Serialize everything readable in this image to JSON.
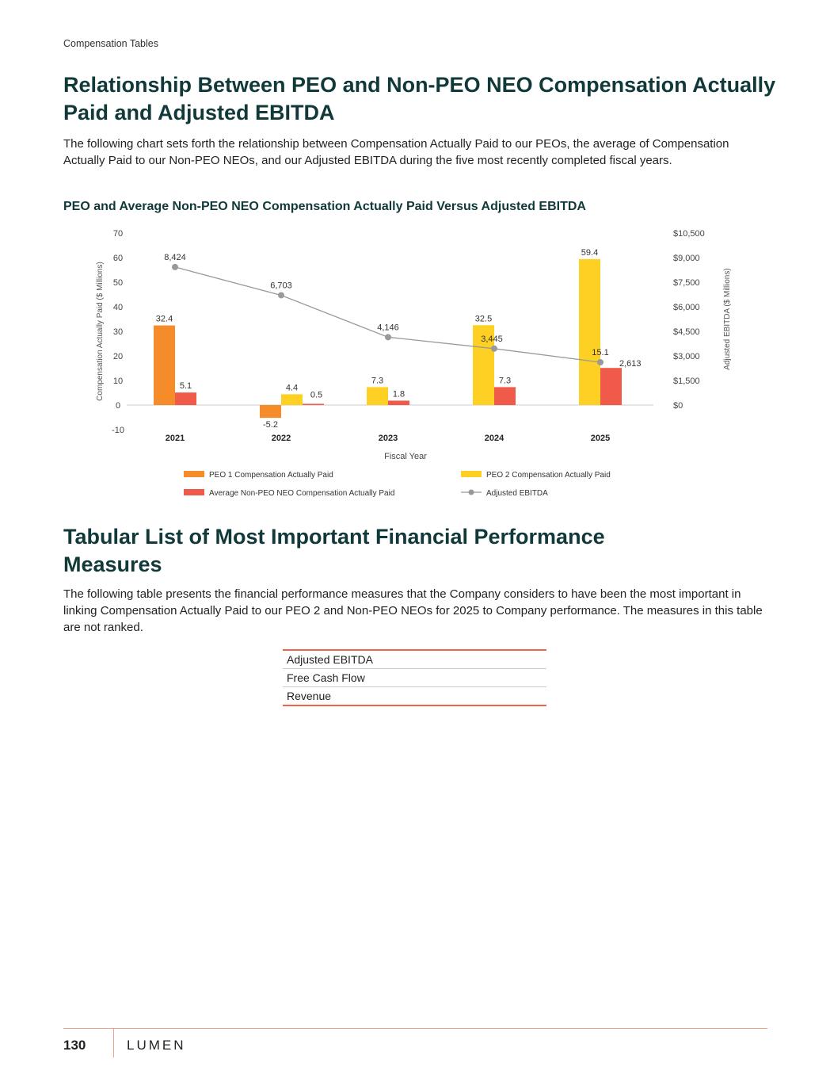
{
  "header": {
    "section": "Compensation Tables"
  },
  "section1": {
    "title": "Relationship Between PEO and Non-PEO NEO Compensation Actually Paid and Adjusted EBITDA",
    "body": "The following chart sets forth the relationship between Compensation Actually Paid to our PEOs, the average of Compensation Actually Paid to our Non-PEO NEOs, and our Adjusted EBITDA during the five most recently completed fiscal years.",
    "chart_title": "PEO and Average Non-PEO NEO Compensation Actually Paid Versus Adjusted EBITDA"
  },
  "chart_data": {
    "type": "bar",
    "title": "PEO and Average Non-PEO NEO Compensation Actually Paid Versus Adjusted EBITDA",
    "categories": [
      "2021",
      "2022",
      "2023",
      "2024",
      "2025"
    ],
    "xlabel": "Fiscal Year",
    "ylabel": "Compensation Actually Paid ($ Millions)",
    "y2label": "Adjusted EBITDA ($ Millions)",
    "ylim": [
      -10,
      70
    ],
    "yticks": [
      "-10",
      "0",
      "10",
      "20",
      "30",
      "40",
      "50",
      "60",
      "70"
    ],
    "y2lim": [
      0,
      10500
    ],
    "y2ticks": [
      "$0",
      "$1,500",
      "$3,000",
      "$4,500",
      "$6,000",
      "$7,500",
      "$9,000",
      "$10,500"
    ],
    "legend_position": "bottom",
    "series": [
      {
        "name": "PEO 1 Compensation Actually Paid",
        "type": "bar",
        "color": "#F68B2A",
        "values": [
          32.4,
          -5.2,
          null,
          null,
          null
        ],
        "labels": [
          "32.4",
          "-5.2",
          "",
          "",
          ""
        ]
      },
      {
        "name": "PEO 2 Compensation Actually Paid",
        "type": "bar",
        "color": "#FDD023",
        "values": [
          null,
          4.4,
          7.3,
          32.5,
          59.4
        ],
        "labels": [
          "",
          "4.4",
          "7.3",
          "32.5",
          "59.4"
        ]
      },
      {
        "name": "Average Non-PEO NEO Compensation Actually Paid",
        "type": "bar",
        "color": "#F05A4A",
        "values": [
          5.1,
          0.5,
          1.8,
          7.3,
          15.1
        ],
        "labels": [
          "5.1",
          "0.5",
          "1.8",
          "7.3",
          "15.1"
        ]
      },
      {
        "name": "Adjusted EBITDA",
        "type": "line",
        "axis": "right",
        "color": "#999999",
        "values": [
          8424,
          6703,
          4146,
          3445,
          2613
        ],
        "labels": [
          "8,424",
          "6,703",
          "4,146",
          "3,445",
          "2,613"
        ]
      }
    ]
  },
  "section2": {
    "title": "Tabular List of Most Important Financial Performance Measures",
    "body": "The following table presents the financial performance measures that the Company considers to have been the most important in linking Compensation Actually Paid to our PEO 2 and Non-PEO NEOs for 2025 to Company performance. The measures in this table are not ranked.",
    "measures": [
      "Adjusted EBITDA",
      "Free Cash Flow",
      "Revenue"
    ]
  },
  "footer": {
    "page_number": "130",
    "logo": "LUMEN"
  }
}
